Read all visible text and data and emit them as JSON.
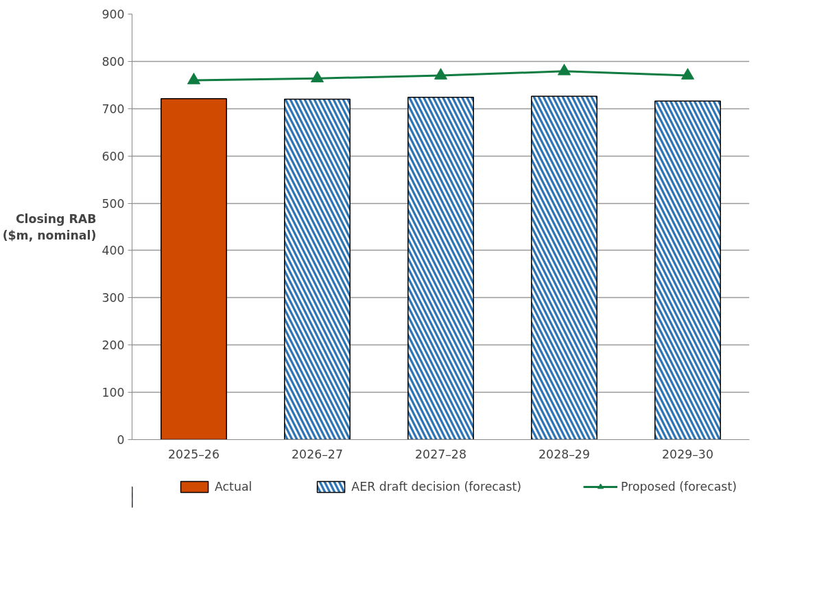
{
  "chart_data": {
    "type": "bar",
    "ylabel": "Closing RAB ($m, nominal)",
    "categories": [
      "2025–26",
      "2026–27",
      "2027–28",
      "2028–29",
      "2029–30"
    ],
    "series": [
      {
        "name": "Actual",
        "color": "#d04a02",
        "values": [
          721,
          null,
          null,
          null,
          null
        ]
      },
      {
        "name": "AER draft decision (forecast)",
        "color": "#2e75b6",
        "values": [
          null,
          720,
          724,
          726,
          716
        ]
      },
      {
        "name": "Proposed (forecast)",
        "type": "line",
        "color": "#107c41",
        "marker": "triangle",
        "values": [
          760,
          764,
          770,
          779,
          770
        ]
      }
    ],
    "ylim": [
      0,
      900
    ],
    "yticks": [
      0,
      100,
      200,
      300,
      400,
      500,
      600,
      700,
      800,
      900
    ],
    "grid": "y",
    "legend": "bottom"
  }
}
